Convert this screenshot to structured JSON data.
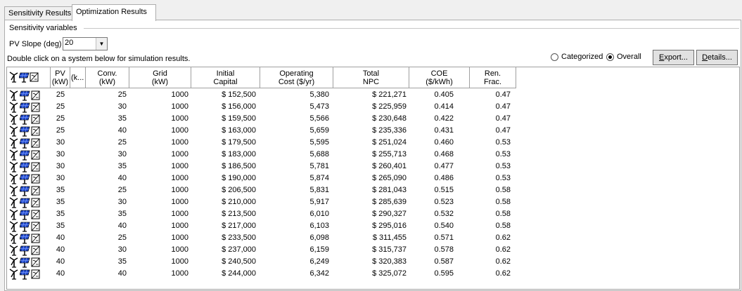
{
  "tabs": [
    "Sensitivity Results",
    "Optimization Results"
  ],
  "sensitivity_group_label": "Sensitivity variables",
  "pv_slope": {
    "label": "PV Slope (deg)",
    "value": "20"
  },
  "hint": "Double click on a system below for simulation results.",
  "radio": {
    "categorized": "Categorized",
    "overall": "Overall",
    "selected": "overall"
  },
  "buttons": {
    "export": "Export...",
    "details": "Details..."
  },
  "columns": [
    [
      "",
      ""
    ],
    [
      "PV",
      "(kW)"
    ],
    [
      "(k...",
      ""
    ],
    [
      "Conv.",
      "(kW)"
    ],
    [
      "Grid",
      "(kW)"
    ],
    [
      "Initial",
      "Capital"
    ],
    [
      "Operating",
      "Cost ($/yr)"
    ],
    [
      "Total",
      "NPC"
    ],
    [
      "COE",
      "($/kWh)"
    ],
    [
      "Ren.",
      "Frac."
    ]
  ],
  "rows": [
    [
      "25",
      "25",
      "1000",
      "$ 152,500",
      "5,380",
      "$ 221,271",
      "0.405",
      "0.47"
    ],
    [
      "25",
      "30",
      "1000",
      "$ 156,000",
      "5,473",
      "$ 225,959",
      "0.414",
      "0.47"
    ],
    [
      "25",
      "35",
      "1000",
      "$ 159,500",
      "5,566",
      "$ 230,648",
      "0.422",
      "0.47"
    ],
    [
      "25",
      "40",
      "1000",
      "$ 163,000",
      "5,659",
      "$ 235,336",
      "0.431",
      "0.47"
    ],
    [
      "30",
      "25",
      "1000",
      "$ 179,500",
      "5,595",
      "$ 251,024",
      "0.460",
      "0.53"
    ],
    [
      "30",
      "30",
      "1000",
      "$ 183,000",
      "5,688",
      "$ 255,713",
      "0.468",
      "0.53"
    ],
    [
      "30",
      "35",
      "1000",
      "$ 186,500",
      "5,781",
      "$ 260,401",
      "0.477",
      "0.53"
    ],
    [
      "30",
      "40",
      "1000",
      "$ 190,000",
      "5,874",
      "$ 265,090",
      "0.486",
      "0.53"
    ],
    [
      "35",
      "25",
      "1000",
      "$ 206,500",
      "5,831",
      "$ 281,043",
      "0.515",
      "0.58"
    ],
    [
      "35",
      "30",
      "1000",
      "$ 210,000",
      "5,917",
      "$ 285,639",
      "0.523",
      "0.58"
    ],
    [
      "35",
      "35",
      "1000",
      "$ 213,500",
      "6,010",
      "$ 290,327",
      "0.532",
      "0.58"
    ],
    [
      "35",
      "40",
      "1000",
      "$ 217,000",
      "6,103",
      "$ 295,016",
      "0.540",
      "0.58"
    ],
    [
      "40",
      "25",
      "1000",
      "$ 233,500",
      "6,098",
      "$ 311,455",
      "0.571",
      "0.62"
    ],
    [
      "40",
      "30",
      "1000",
      "$ 237,000",
      "6,159",
      "$ 315,737",
      "0.578",
      "0.62"
    ],
    [
      "40",
      "35",
      "1000",
      "$ 240,500",
      "6,249",
      "$ 320,383",
      "0.587",
      "0.62"
    ],
    [
      "40",
      "40",
      "1000",
      "$ 244,000",
      "6,342",
      "$ 325,072",
      "0.595",
      "0.62"
    ]
  ],
  "row_icons": [
    "wind-turbine-icon",
    "pv-panel-icon",
    "converter-icon"
  ]
}
